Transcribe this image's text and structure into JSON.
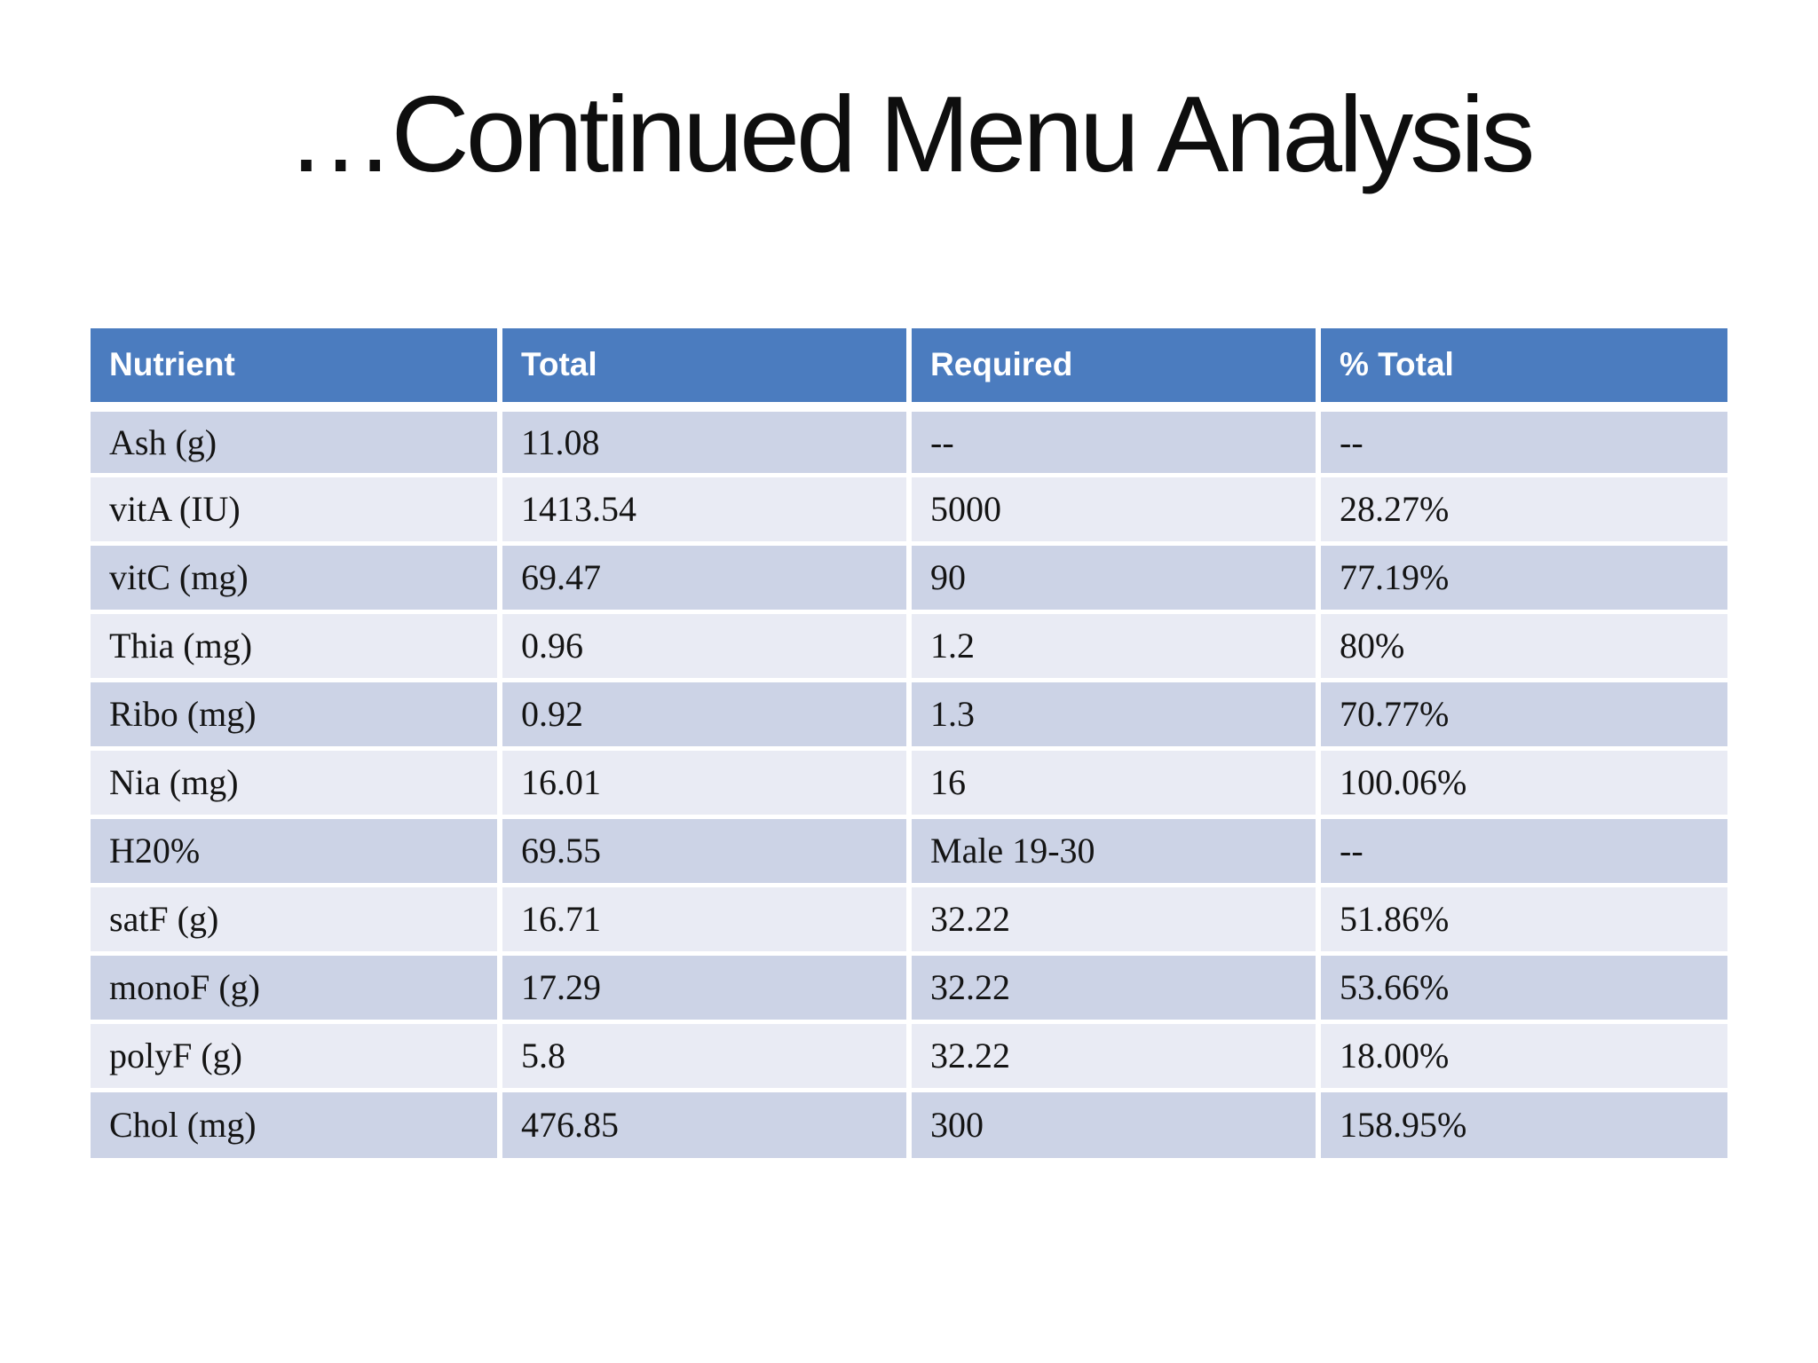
{
  "slide": {
    "title": "…Continued Menu Analysis"
  },
  "table": {
    "headers": [
      "Nutrient",
      "Total",
      "Required",
      "% Total"
    ],
    "rows": [
      [
        "Ash (g)",
        "11.08",
        "--",
        "--"
      ],
      [
        "vitA (IU)",
        "1413.54",
        "5000",
        "28.27%"
      ],
      [
        "vitC (mg)",
        "69.47",
        "90",
        "77.19%"
      ],
      [
        "Thia (mg)",
        "0.96",
        "1.2",
        "80%"
      ],
      [
        "Ribo (mg)",
        "0.92",
        "1.3",
        "70.77%"
      ],
      [
        "Nia (mg)",
        "16.01",
        "16",
        "100.06%"
      ],
      [
        "H20%",
        "69.55",
        "Male 19-30",
        "--"
      ],
      [
        "satF (g)",
        "16.71",
        "32.22",
        "51.86%"
      ],
      [
        "monoF (g)",
        "17.29",
        "32.22",
        "53.66%"
      ],
      [
        "polyF (g)",
        "5.8",
        "32.22",
        "18.00%"
      ],
      [
        "Chol (mg)",
        "476.85",
        "300",
        "158.95%"
      ]
    ],
    "colors": {
      "header_bg": "#4b7cbf",
      "band_dark": "#ccd3e6",
      "band_light": "#e9ebf4",
      "header_text": "#ffffff",
      "body_text": "#141414",
      "grid": "#ffffff",
      "title": "#0e0e0e"
    }
  }
}
